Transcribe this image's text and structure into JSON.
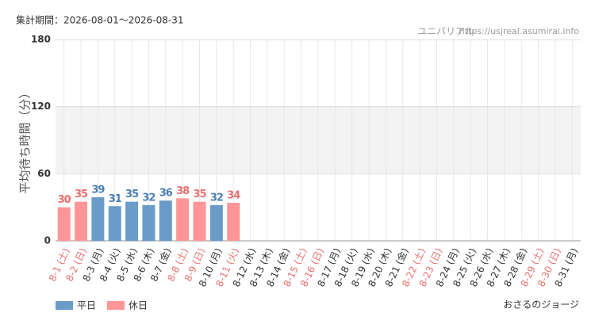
{
  "chart_data": {
    "type": "bar",
    "header": "集計期間：2026-08-01～2026-08-31",
    "source": "ユニバリアル",
    "url": "https://usjreal.asumirai.info",
    "y_label": "平均待ち時間（分）",
    "footer": "おさるのジョージ",
    "categories": [
      "8-1 (土)",
      "8-2 (日)",
      "8-3 (月)",
      "8-4 (火)",
      "8-5 (水)",
      "8-6 (木)",
      "8-7 (金)",
      "8-8 (土)",
      "8-9 (日)",
      "8-10 (月)",
      "8-11 (火)",
      "8-12 (水)",
      "8-13 (木)",
      "8-14 (金)",
      "8-15 (土)",
      "8-16 (日)",
      "8-17 (月)",
      "8-18 (火)",
      "8-19 (水)",
      "8-20 (木)",
      "8-21 (金)",
      "8-22 (土)",
      "8-23 (日)",
      "8-24 (月)",
      "8-25 (火)",
      "8-26 (水)",
      "8-27 (木)",
      "8-28 (金)",
      "8-29 (土)",
      "8-30 (日)",
      "8-31 (月)"
    ],
    "category_colors": [
      "#e8706f",
      "#e8706f",
      "#333333",
      "#333333",
      "#333333",
      "#333333",
      "#333333",
      "#e8706f",
      "#e8706f",
      "#333333",
      "#e8706f",
      "#333333",
      "#333333",
      "#333333",
      "#e8706f",
      "#e8706f",
      "#333333",
      "#333333",
      "#333333",
      "#333333",
      "#333333",
      "#e8706f",
      "#e8706f",
      "#333333",
      "#333333",
      "#333333",
      "#333333",
      "#333333",
      "#e8706f",
      "#e8706f",
      "#333333"
    ],
    "series": [
      {
        "name": "平日",
        "color": "#6a9bc9",
        "label_color": "#4a7fb3",
        "values": [
          null,
          null,
          39,
          31,
          35,
          32,
          36,
          null,
          null,
          32,
          null,
          null,
          null,
          null,
          null,
          null,
          null,
          null,
          null,
          null,
          null,
          null,
          null,
          null,
          null,
          null,
          null,
          null,
          null,
          null,
          null
        ]
      },
      {
        "name": "休日",
        "color": "#ff9596",
        "label_color": "#e8706f",
        "values": [
          30,
          35,
          null,
          null,
          null,
          null,
          null,
          38,
          35,
          null,
          34,
          null,
          null,
          null,
          null,
          null,
          null,
          null,
          null,
          null,
          null,
          null,
          null,
          null,
          null,
          null,
          null,
          null,
          null,
          null,
          null
        ]
      }
    ],
    "ylim": [
      0,
      180
    ],
    "yticks": [
      0,
      60,
      120,
      180
    ],
    "grid": true,
    "shade_alternate": true
  }
}
